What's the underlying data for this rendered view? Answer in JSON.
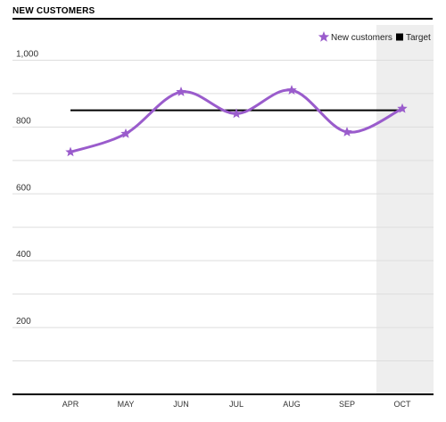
{
  "header": {
    "title": "NEW CUSTOMERS"
  },
  "chart_data": {
    "type": "line",
    "title": "NEW CUSTOMERS",
    "xlabel": "",
    "ylabel": "",
    "categories": [
      "APR",
      "MAY",
      "JUN",
      "JUL",
      "AUG",
      "SEP",
      "OCT"
    ],
    "series": [
      {
        "name": "New customers",
        "type": "line",
        "marker": "star",
        "color": "#9a5ccc",
        "values": [
          725,
          780,
          905,
          840,
          910,
          785,
          855
        ]
      },
      {
        "name": "Target",
        "type": "line",
        "color": "#000000",
        "values": [
          850,
          850,
          850,
          850,
          850,
          850,
          850
        ]
      }
    ],
    "y_ticks": [
      200,
      400,
      600,
      800,
      1000
    ],
    "y_tick_labels": [
      "200",
      "400",
      "600",
      "800",
      "1,000"
    ],
    "ylim": [
      0,
      1100
    ],
    "grid": true,
    "highlighted_category": "OCT",
    "highlight_color": "#eeeeee",
    "legend": {
      "position": "top-right",
      "entries": [
        "New customers",
        "Target"
      ]
    }
  }
}
